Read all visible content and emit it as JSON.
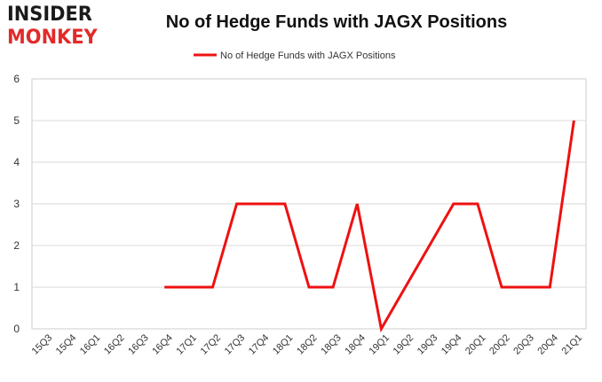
{
  "logo": {
    "line1": "INSIDER",
    "line2": "MONKEY"
  },
  "chart_data": {
    "type": "line",
    "title": "No of Hedge Funds with JAGX Positions",
    "xlabel": "",
    "ylabel": "",
    "categories": [
      "15Q3",
      "15Q4",
      "16Q1",
      "16Q2",
      "16Q3",
      "16Q4",
      "17Q1",
      "17Q2",
      "17Q3",
      "17Q4",
      "18Q1",
      "18Q2",
      "18Q3",
      "18Q4",
      "19Q1",
      "19Q2",
      "19Q3",
      "19Q4",
      "20Q1",
      "20Q2",
      "20Q3",
      "20Q4",
      "21Q1"
    ],
    "series": [
      {
        "name": "No of Hedge Funds with JAGX Positions",
        "values": [
          null,
          null,
          null,
          null,
          null,
          1,
          1,
          1,
          3,
          3,
          3,
          1,
          1,
          3,
          0,
          1,
          2,
          3,
          3,
          1,
          1,
          1,
          5
        ],
        "color": "#ee1111"
      }
    ],
    "ylim": [
      0,
      6
    ],
    "yticks": [
      0,
      1,
      2,
      3,
      4,
      5,
      6
    ],
    "grid": true,
    "legend": "top-center"
  }
}
